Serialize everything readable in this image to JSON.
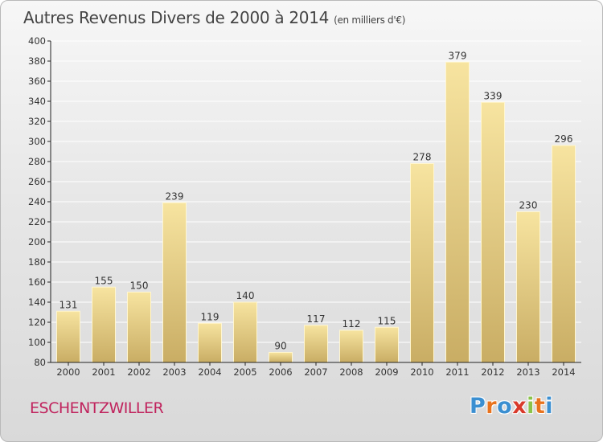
{
  "title": "Autres Revenus Divers de 2000 à 2014",
  "subtitle": "(en milliers d'€)",
  "location": "ESCHENTZWILLER",
  "logo": {
    "text": "Proxiti",
    "letters": [
      "P",
      "r",
      "o",
      "x",
      "i",
      "t",
      "i"
    ],
    "colors": [
      "#3b8fd1",
      "#e8731e",
      "#3b8fd1",
      "#d93a2b",
      "#8bc34a",
      "#e8731e",
      "#3b8fd1"
    ]
  },
  "colors": {
    "bar_light": "#f7e4a0",
    "bar_dark": "#c9ad64",
    "grid": "#ffffff",
    "axis": "#222222"
  },
  "chart_data": {
    "type": "bar",
    "categories": [
      "2000",
      "2001",
      "2002",
      "2003",
      "2004",
      "2005",
      "2006",
      "2007",
      "2008",
      "2009",
      "2010",
      "2011",
      "2012",
      "2013",
      "2014"
    ],
    "values": [
      131,
      155,
      150,
      239,
      119,
      140,
      90,
      117,
      112,
      115,
      278,
      379,
      339,
      230,
      296
    ],
    "ylim": [
      80,
      400
    ],
    "yticks": [
      80,
      100,
      120,
      140,
      160,
      180,
      200,
      220,
      240,
      260,
      280,
      300,
      320,
      340,
      360,
      380,
      400
    ],
    "grid": true
  }
}
